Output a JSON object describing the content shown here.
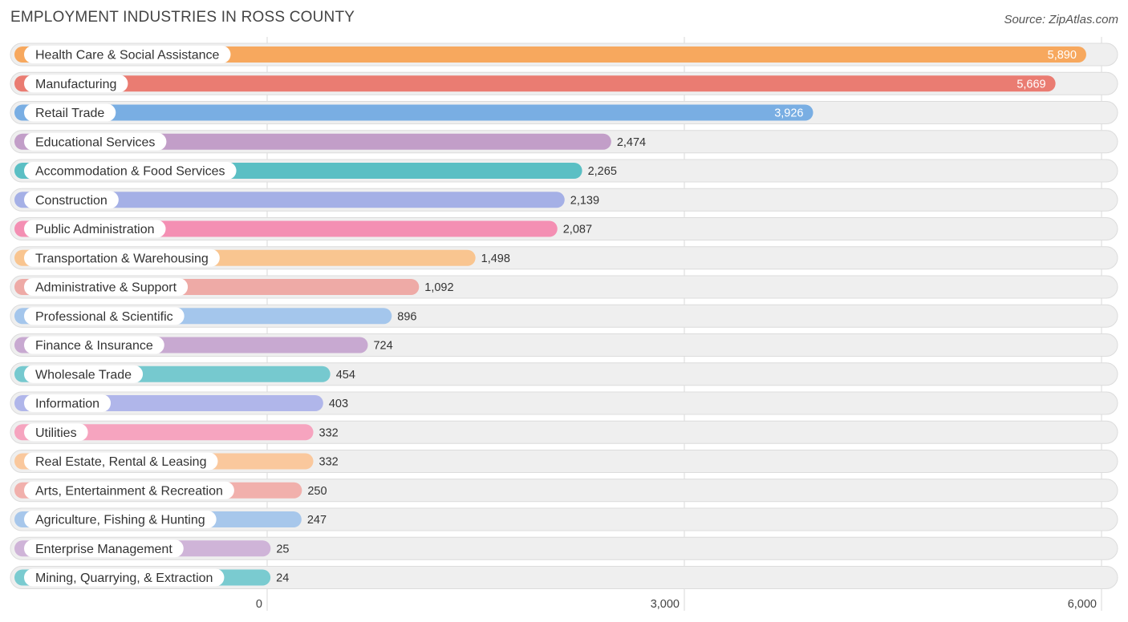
{
  "header": {
    "title": "EMPLOYMENT INDUSTRIES IN ROSS COUNTY",
    "source": "Source: ZipAtlas.com"
  },
  "colors": {
    "track": "#efefef",
    "track_border": "#dcdcdc",
    "grid": "#d8d8d8",
    "value_inside": "#ffffff",
    "value_outside": "#333333"
  },
  "chart_data": {
    "type": "bar",
    "orientation": "horizontal",
    "title": "EMPLOYMENT INDUSTRIES IN ROSS COUNTY",
    "xlim": [
      0,
      6000
    ],
    "ticks": [
      0,
      3000,
      6000
    ],
    "tick_labels": [
      "0",
      "3,000",
      "6,000"
    ],
    "grid": true,
    "categories": [
      "Health Care & Social Assistance",
      "Manufacturing",
      "Retail Trade",
      "Educational Services",
      "Accommodation & Food Services",
      "Construction",
      "Public Administration",
      "Transportation & Warehousing",
      "Administrative & Support",
      "Professional & Scientific",
      "Finance & Insurance",
      "Wholesale Trade",
      "Information",
      "Utilities",
      "Real Estate, Rental & Leasing",
      "Arts, Entertainment & Recreation",
      "Agriculture, Fishing & Hunting",
      "Enterprise Management",
      "Mining, Quarrying, & Extraction"
    ],
    "values": [
      5890,
      5669,
      3926,
      2474,
      2265,
      2139,
      2087,
      1498,
      1092,
      896,
      724,
      454,
      403,
      332,
      332,
      250,
      247,
      25,
      24
    ],
    "value_labels": [
      "5,890",
      "5,669",
      "3,926",
      "2,474",
      "2,265",
      "2,139",
      "2,087",
      "1,498",
      "1,092",
      "896",
      "724",
      "454",
      "403",
      "332",
      "332",
      "250",
      "247",
      "25",
      "24"
    ],
    "bar_colors": [
      "#f7a85e",
      "#ea7c72",
      "#79aee3",
      "#c29ec8",
      "#5bbfc4",
      "#a5b0e6",
      "#f48fb3",
      "#f9c590",
      "#eeaaa6",
      "#a4c6ec",
      "#c8a9d1",
      "#76c9cf",
      "#b0b6ea",
      "#f6a4bf",
      "#fac89d",
      "#f1b0ac",
      "#a7c7eb",
      "#cfb4d8",
      "#7acbd0"
    ]
  }
}
